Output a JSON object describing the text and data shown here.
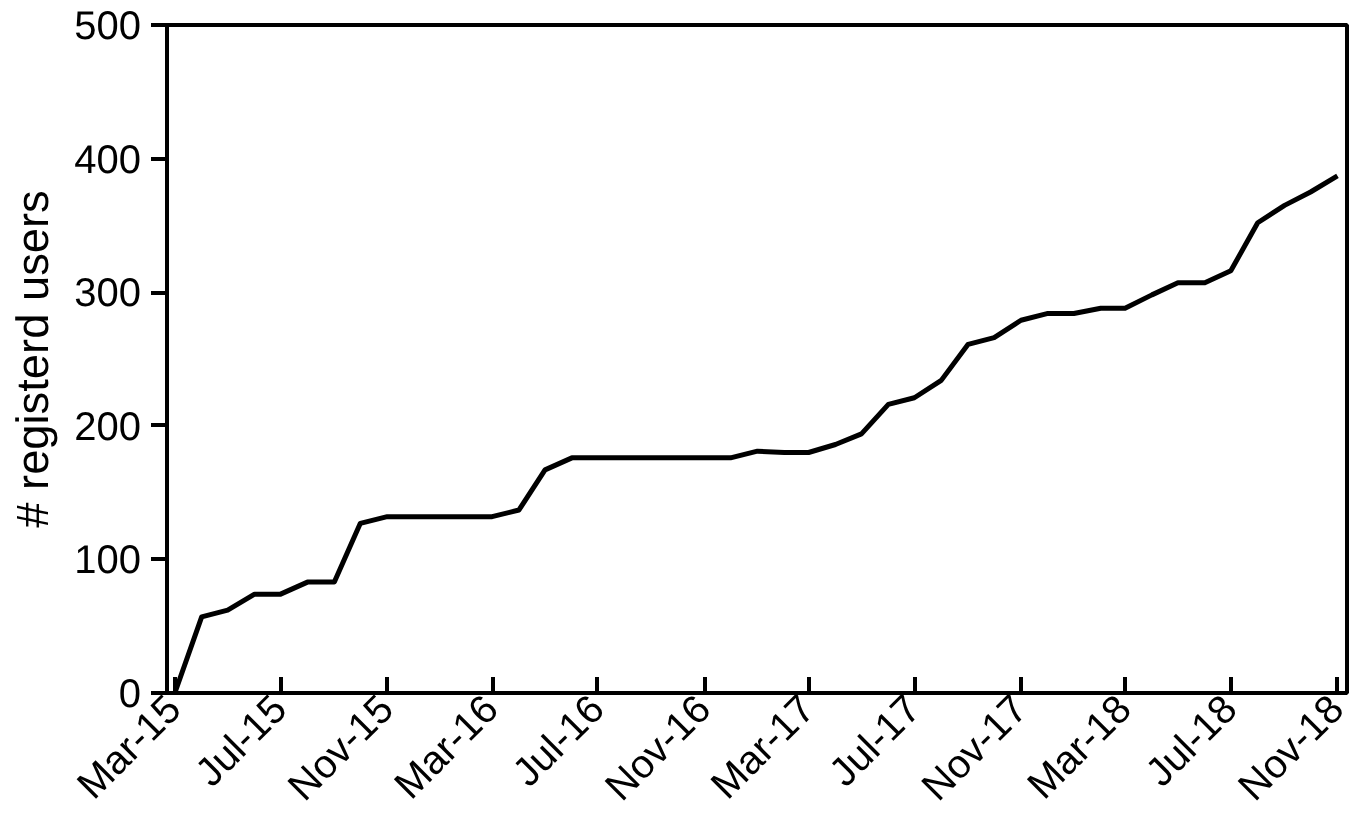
{
  "chart_data": {
    "type": "line",
    "ylabel": "# registerd users",
    "x": [
      "2015-03",
      "2015-04",
      "2015-05",
      "2015-06",
      "2015-07",
      "2015-08",
      "2015-09",
      "2015-10",
      "2015-11",
      "2015-12",
      "2016-01",
      "2016-02",
      "2016-03",
      "2016-04",
      "2016-05",
      "2016-06",
      "2016-07",
      "2016-08",
      "2016-09",
      "2016-10",
      "2016-11",
      "2016-12",
      "2017-01",
      "2017-02",
      "2017-03",
      "2017-04",
      "2017-05",
      "2017-06",
      "2017-07",
      "2017-08",
      "2017-09",
      "2017-10",
      "2017-11",
      "2017-12",
      "2018-01",
      "2018-02",
      "2018-03",
      "2018-04",
      "2018-05",
      "2018-06",
      "2018-07",
      "2018-08",
      "2018-09",
      "2018-10",
      "2018-11"
    ],
    "series": [
      {
        "color": "#000000",
        "values": [
          0,
          57,
          62,
          74,
          74,
          83,
          83,
          127,
          132,
          132,
          132,
          132,
          132,
          137,
          167,
          176,
          176,
          176,
          176,
          176,
          176,
          176,
          181,
          180,
          180,
          186,
          194,
          216,
          221,
          234,
          261,
          266,
          279,
          284,
          284,
          288,
          288,
          298,
          307,
          307,
          316,
          352,
          365,
          375,
          387
        ]
      }
    ],
    "xlim": [
      "2015-02-20",
      "2018-11-12"
    ],
    "xticks": [
      {
        "value": "2015-03",
        "label": "Mar-15"
      },
      {
        "value": "2015-07",
        "label": "Jul-15"
      },
      {
        "value": "2015-11",
        "label": "Nov-15"
      },
      {
        "value": "2016-03",
        "label": "Mar-16"
      },
      {
        "value": "2016-07",
        "label": "Jul-16"
      },
      {
        "value": "2016-11",
        "label": "Nov-16"
      },
      {
        "value": "2017-03",
        "label": "Mar-17"
      },
      {
        "value": "2017-07",
        "label": "Jul-17"
      },
      {
        "value": "2017-11",
        "label": "Nov-17"
      },
      {
        "value": "2018-03",
        "label": "Mar-18"
      },
      {
        "value": "2018-07",
        "label": "Jul-18"
      },
      {
        "value": "2018-11",
        "label": "Nov-18"
      }
    ],
    "ylim": [
      0,
      500
    ],
    "yticks": [
      0,
      100,
      200,
      300,
      400,
      500
    ],
    "grid": false,
    "marker": "none",
    "line_style": "solid"
  }
}
